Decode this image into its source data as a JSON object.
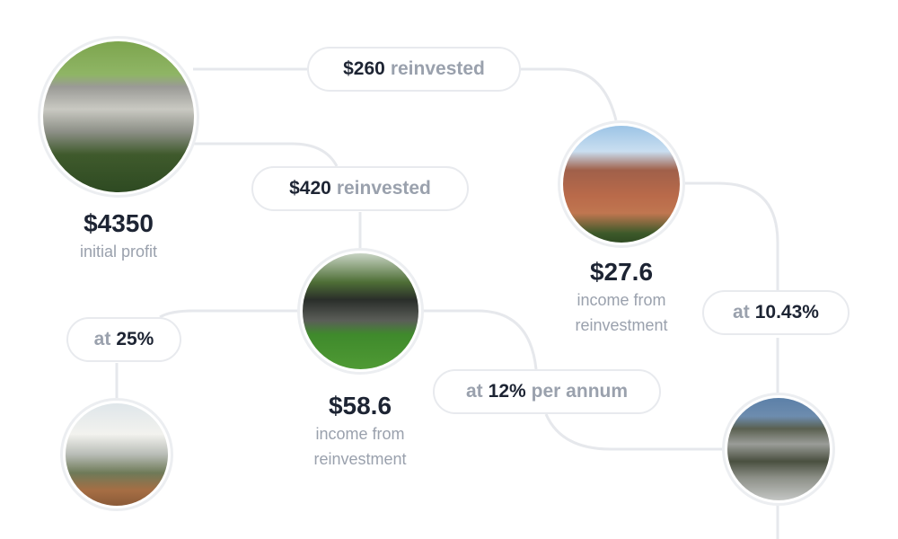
{
  "colors": {
    "line": "#e6e8ec",
    "text_strong": "#1d2433",
    "text_muted": "#9aa1ad"
  },
  "nodes": {
    "initial": {
      "amount": "$4350",
      "label": "initial profit",
      "image": "terraced-apartment-complex-photo"
    },
    "node_b": {
      "amount": "$27.6",
      "label_line1": "income from",
      "label_line2": "reinvestment",
      "image": "brick-townhouses-photo"
    },
    "node_c": {
      "amount": "$58.6",
      "label_line1": "income from",
      "label_line2": "reinvestment",
      "image": "modern-bungalow-lawn-photo"
    },
    "node_d": {
      "image": "modern-villa-photo"
    },
    "node_e": {
      "image": "apartment-building-palms-photo"
    }
  },
  "pills": {
    "reinvest_260": {
      "value": "$260",
      "suffix": "reinvested"
    },
    "reinvest_420": {
      "value": "$420",
      "suffix": "reinvested"
    },
    "rate_25": {
      "prefix": "at",
      "value": "25%"
    },
    "rate_12": {
      "prefix": "at",
      "value": "12%",
      "suffix": "per annum"
    },
    "rate_1043": {
      "prefix": "at",
      "value": "10.43%"
    }
  }
}
